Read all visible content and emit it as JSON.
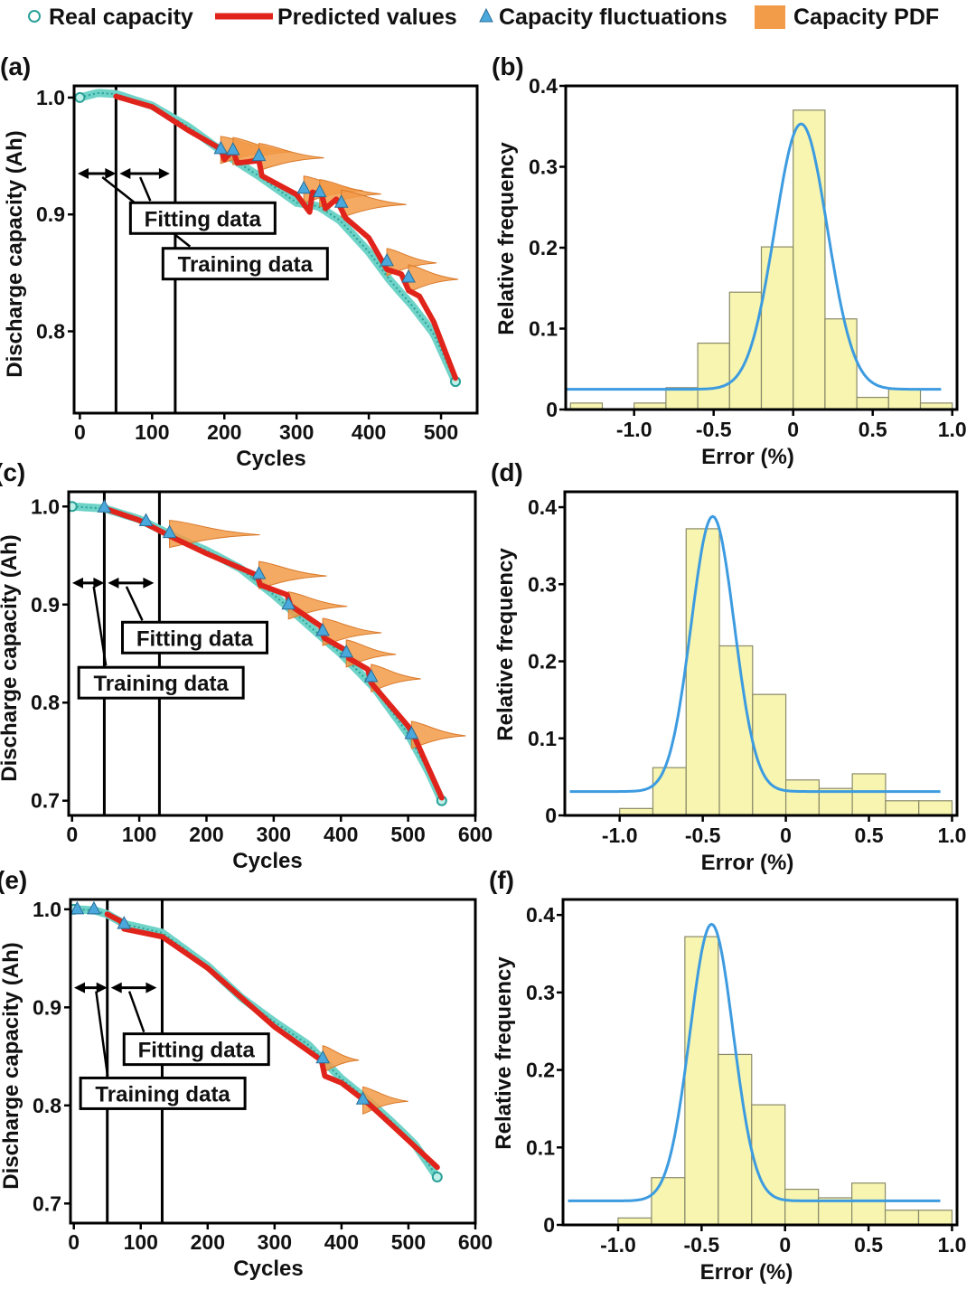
{
  "legend": {
    "real": "Real capacity",
    "pred": "Predicted values",
    "fluct": "Capacity fluctuations",
    "pdf": "Capacity PDF"
  },
  "colors": {
    "real": "#2aa198",
    "real_fill": "#6fd3c8",
    "pred": "#e0241b",
    "fluct": "#4ba8dc",
    "pdf": "#f29b48",
    "bar": "#f7f5b0",
    "bar_edge": "#8a8a6a",
    "fit": "#3d9be0"
  },
  "chart_data": [
    {
      "id": "a",
      "label": "(a)",
      "type": "line",
      "xlabel": "Cycles",
      "ylabel": "Discharge capacity (Ah)",
      "xlim": [
        -8,
        550
      ],
      "ylim": [
        0.73,
        1.01
      ],
      "xticks": [
        0,
        100,
        200,
        300,
        400,
        500
      ],
      "yticks": [
        0.8,
        0.9,
        1.0
      ],
      "ytick_labels": [
        "0.8",
        "0.9",
        "1.0"
      ],
      "vlines": [
        50,
        132
      ],
      "annotations": {
        "fitting": "Fitting data",
        "training": "Training data"
      },
      "arrow_y": 0.935,
      "boxes": {
        "fitting": [
          70,
          0.91
        ],
        "training": [
          115,
          0.871
        ]
      },
      "real_end": 520,
      "pred_start": 50,
      "real_capacity": [
        [
          0,
          1.0
        ],
        [
          25,
          1.004
        ],
        [
          50,
          1.003
        ],
        [
          100,
          0.993
        ],
        [
          150,
          0.975
        ],
        [
          190,
          0.957
        ],
        [
          210,
          0.948
        ],
        [
          250,
          0.932
        ],
        [
          300,
          0.91
        ],
        [
          330,
          0.907
        ],
        [
          360,
          0.895
        ],
        [
          400,
          0.868
        ],
        [
          430,
          0.843
        ],
        [
          460,
          0.822
        ],
        [
          490,
          0.798
        ],
        [
          520,
          0.757
        ]
      ],
      "predicted": [
        [
          50,
          1.001
        ],
        [
          100,
          0.992
        ],
        [
          130,
          0.98
        ],
        [
          150,
          0.972
        ],
        [
          195,
          0.956
        ],
        [
          200,
          0.947
        ],
        [
          212,
          0.955
        ],
        [
          218,
          0.944
        ],
        [
          248,
          0.946
        ],
        [
          252,
          0.933
        ],
        [
          300,
          0.917
        ],
        [
          318,
          0.902
        ],
        [
          322,
          0.919
        ],
        [
          335,
          0.916
        ],
        [
          340,
          0.905
        ],
        [
          355,
          0.913
        ],
        [
          368,
          0.897
        ],
        [
          400,
          0.88
        ],
        [
          425,
          0.853
        ],
        [
          445,
          0.849
        ],
        [
          455,
          0.835
        ],
        [
          470,
          0.83
        ],
        [
          490,
          0.808
        ],
        [
          520,
          0.76
        ]
      ],
      "fluctuations": [
        [
          195,
          0.956
        ],
        [
          212,
          0.955
        ],
        [
          248,
          0.95
        ],
        [
          310,
          0.922
        ],
        [
          332,
          0.919
        ],
        [
          362,
          0.91
        ],
        [
          425,
          0.86
        ],
        [
          455,
          0.846
        ]
      ],
      "pdf_width": [
        70,
        65,
        72,
        65,
        68,
        72,
        55,
        55
      ]
    },
    {
      "id": "b",
      "label": "(b)",
      "type": "bar",
      "xlabel": "Error (%)",
      "ylabel": "Relative frequency",
      "xlim": [
        -1.43,
        1.03
      ],
      "ylim": [
        0,
        0.4
      ],
      "xticks": [
        -1.0,
        -0.5,
        0,
        0.5,
        1.0
      ],
      "xtick_labels": [
        "-1.0",
        "-0.5",
        "0",
        "0.5",
        "1.0"
      ],
      "yticks": [
        0,
        0.1,
        0.2,
        0.3,
        0.4
      ],
      "ytick_labels": [
        "0",
        "0.1",
        "0.2",
        "0.3",
        "0.4"
      ],
      "bin_width": 0.2,
      "bin_starts": [
        -1.4,
        -1.2,
        -1.0,
        -0.8,
        -0.6,
        -0.4,
        -0.2,
        0.0,
        0.2,
        0.4,
        0.6,
        0.8
      ],
      "values": [
        0.008,
        0,
        0.008,
        0.027,
        0.082,
        0.145,
        0.201,
        0.37,
        0.112,
        0.015,
        0.025,
        0.008
      ],
      "fit": {
        "mu": 0.05,
        "sigma": 0.165,
        "amp": 0.328,
        "base": 0.025,
        "range": [
          -1.43,
          0.93
        ]
      }
    },
    {
      "id": "c",
      "label": "(c)",
      "type": "line",
      "xlabel": "Cycles",
      "ylabel": "Discharge capacity (Ah)",
      "xlim": [
        -5,
        600
      ],
      "ylim": [
        0.685,
        1.015
      ],
      "xticks": [
        0,
        100,
        200,
        300,
        400,
        500,
        600
      ],
      "yticks": [
        0.7,
        0.8,
        0.9,
        1.0
      ],
      "ytick_labels": [
        "0.7",
        "0.8",
        "0.9",
        "1.0"
      ],
      "vlines": [
        48,
        130
      ],
      "annotations": {
        "fitting": "Fitting data",
        "training": "Training data"
      },
      "arrow_y": 0.922,
      "boxes": {
        "fitting": [
          75,
          0.882
        ],
        "training": [
          10,
          0.836
        ]
      },
      "real_end": 550,
      "pred_start": 48,
      "real_capacity": [
        [
          0,
          1.0
        ],
        [
          48,
          0.998
        ],
        [
          100,
          0.987
        ],
        [
          150,
          0.97
        ],
        [
          200,
          0.955
        ],
        [
          250,
          0.937
        ],
        [
          300,
          0.91
        ],
        [
          350,
          0.88
        ],
        [
          400,
          0.85
        ],
        [
          450,
          0.815
        ],
        [
          500,
          0.768
        ],
        [
          530,
          0.73
        ],
        [
          550,
          0.7
        ]
      ],
      "predicted": [
        [
          48,
          0.998
        ],
        [
          100,
          0.986
        ],
        [
          145,
          0.97
        ],
        [
          200,
          0.952
        ],
        [
          275,
          0.93
        ],
        [
          280,
          0.92
        ],
        [
          320,
          0.91
        ],
        [
          325,
          0.899
        ],
        [
          370,
          0.878
        ],
        [
          375,
          0.866
        ],
        [
          408,
          0.853
        ],
        [
          412,
          0.845
        ],
        [
          440,
          0.834
        ],
        [
          445,
          0.82
        ],
        [
          500,
          0.776
        ],
        [
          510,
          0.764
        ],
        [
          550,
          0.703
        ]
      ],
      "fluctuations": [
        [
          48,
          0.999
        ],
        [
          110,
          0.985
        ],
        [
          145,
          0.973
        ],
        [
          278,
          0.931
        ],
        [
          322,
          0.9
        ],
        [
          373,
          0.873
        ],
        [
          408,
          0.851
        ],
        [
          445,
          0.826
        ],
        [
          505,
          0.768
        ]
      ],
      "pdf_width": [
        0,
        0,
        100,
        75,
        65,
        65,
        55,
        55,
        60
      ]
    },
    {
      "id": "d",
      "label": "(d)",
      "type": "bar",
      "xlabel": "Error (%)",
      "ylabel": "Relative frequency",
      "xlim": [
        -1.33,
        1.03
      ],
      "ylim": [
        0,
        0.42
      ],
      "xticks": [
        -1.0,
        -0.5,
        0,
        0.5,
        1.0
      ],
      "xtick_labels": [
        "-1.0",
        "-0.5",
        "0",
        "0.5",
        "1.0"
      ],
      "yticks": [
        0,
        0.1,
        0.2,
        0.3,
        0.4
      ],
      "ytick_labels": [
        "0",
        "0.1",
        "0.2",
        "0.3",
        "0.4"
      ],
      "bin_width": 0.2,
      "bin_starts": [
        -1.0,
        -0.8,
        -0.6,
        -0.4,
        -0.2,
        0.0,
        0.2,
        0.4,
        0.6,
        0.8
      ],
      "values": [
        0.009,
        0.062,
        0.372,
        0.22,
        0.157,
        0.046,
        0.035,
        0.054,
        0.019,
        0.019
      ],
      "fit": {
        "mu": -0.44,
        "sigma": 0.13,
        "amp": 0.357,
        "base": 0.031,
        "range": [
          -1.3,
          0.93
        ]
      }
    },
    {
      "id": "e",
      "label": "(e)",
      "type": "line",
      "xlabel": "Cycles",
      "ylabel": "Discharge capacity (Ah)",
      "xlim": [
        -5,
        600
      ],
      "ylim": [
        0.68,
        1.01
      ],
      "xticks": [
        0,
        100,
        200,
        300,
        400,
        500,
        600
      ],
      "yticks": [
        0.7,
        0.8,
        0.9,
        1.0
      ],
      "ytick_labels": [
        "0.7",
        "0.8",
        "0.9",
        "1.0"
      ],
      "vlines": [
        50,
        132
      ],
      "annotations": {
        "fitting": "Fitting data",
        "training": "Training data"
      },
      "arrow_y": 0.92,
      "boxes": {
        "fitting": [
          75,
          0.873
        ],
        "training": [
          10,
          0.828
        ]
      },
      "real_end": 543,
      "pred_start": 50,
      "real_capacity": [
        [
          0,
          1.0
        ],
        [
          30,
          0.999
        ],
        [
          50,
          0.995
        ],
        [
          75,
          0.985
        ],
        [
          132,
          0.976
        ],
        [
          200,
          0.942
        ],
        [
          250,
          0.91
        ],
        [
          300,
          0.885
        ],
        [
          350,
          0.862
        ],
        [
          400,
          0.827
        ],
        [
          440,
          0.805
        ],
        [
          480,
          0.78
        ],
        [
          510,
          0.76
        ],
        [
          530,
          0.74
        ],
        [
          543,
          0.727
        ]
      ],
      "predicted": [
        [
          50,
          0.995
        ],
        [
          70,
          0.988
        ],
        [
          75,
          0.98
        ],
        [
          132,
          0.972
        ],
        [
          200,
          0.94
        ],
        [
          300,
          0.88
        ],
        [
          370,
          0.846
        ],
        [
          375,
          0.83
        ],
        [
          400,
          0.823
        ],
        [
          440,
          0.802
        ],
        [
          480,
          0.777
        ],
        [
          543,
          0.737
        ]
      ],
      "fluctuations": [
        [
          5,
          1.0
        ],
        [
          30,
          1.0
        ],
        [
          75,
          0.985
        ],
        [
          372,
          0.848
        ],
        [
          432,
          0.806
        ]
      ],
      "pdf_width": [
        0,
        0,
        0,
        40,
        50
      ]
    },
    {
      "id": "f",
      "label": "(f)",
      "type": "bar",
      "xlabel": "Error (%)",
      "ylabel": "Relative frequency",
      "xlim": [
        -1.33,
        1.03
      ],
      "ylim": [
        0,
        0.42
      ],
      "xticks": [
        -1.0,
        -0.5,
        0,
        0.5,
        1.0
      ],
      "xtick_labels": [
        "-1.0",
        "-0.5",
        "0",
        "0.5",
        "1.0"
      ],
      "yticks": [
        0,
        0.1,
        0.2,
        0.3,
        0.4
      ],
      "ytick_labels": [
        "0",
        "0.1",
        "0.2",
        "0.3",
        "0.4"
      ],
      "bin_width": 0.2,
      "bin_starts": [
        -1.0,
        -0.8,
        -0.6,
        -0.4,
        -0.2,
        0.0,
        0.2,
        0.4,
        0.6,
        0.8
      ],
      "values": [
        0.009,
        0.061,
        0.372,
        0.22,
        0.155,
        0.046,
        0.035,
        0.054,
        0.019,
        0.019
      ],
      "fit": {
        "mu": -0.44,
        "sigma": 0.13,
        "amp": 0.357,
        "base": 0.031,
        "range": [
          -1.3,
          0.93
        ]
      }
    }
  ]
}
